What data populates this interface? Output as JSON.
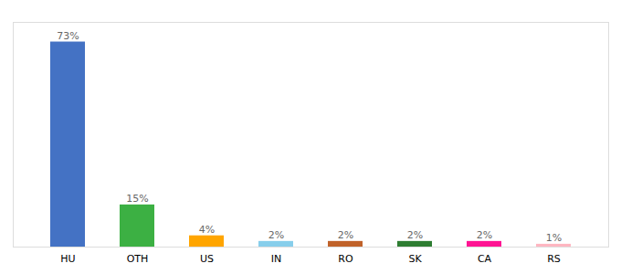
{
  "chart_data": {
    "type": "bar",
    "categories": [
      "HU",
      "OTH",
      "US",
      "IN",
      "RO",
      "SK",
      "CA",
      "RS"
    ],
    "values": [
      73,
      15,
      4,
      2,
      2,
      2,
      2,
      1
    ],
    "value_labels": [
      "73%",
      "15%",
      "4%",
      "2%",
      "2%",
      "2%",
      "2%",
      "1%"
    ],
    "colors": [
      "#4472C4",
      "#3CB043",
      "#FFA500",
      "#87CEEB",
      "#C0622A",
      "#2E7D32",
      "#FF1493",
      "#FFB6C1"
    ],
    "ylim": [
      0,
      80
    ],
    "data_labels": true,
    "tick_labels": "x"
  }
}
